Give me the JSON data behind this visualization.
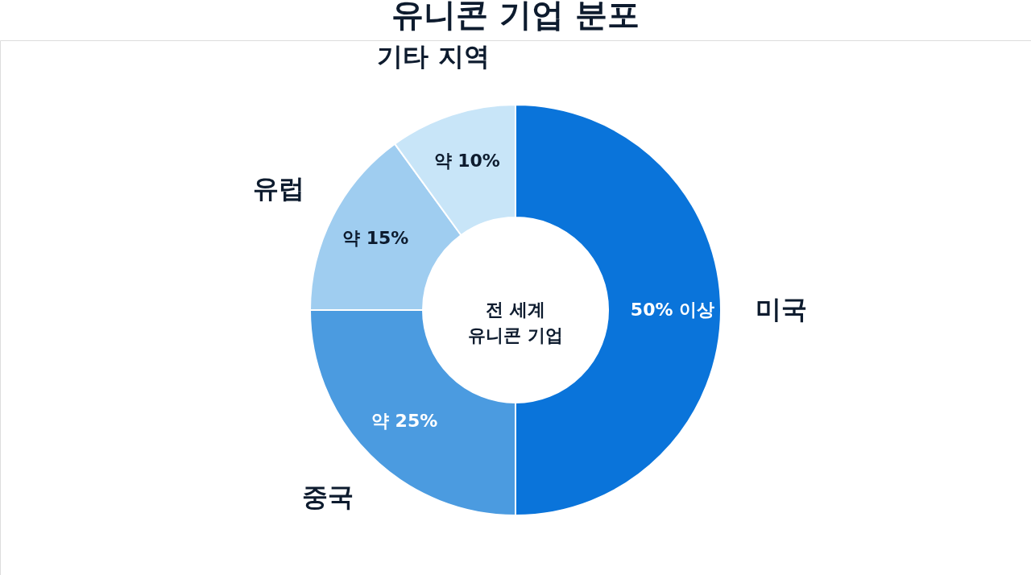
{
  "chart_data": {
    "type": "donut",
    "title": "유니콘 기업 분포",
    "categories": [
      "미국",
      "중국",
      "유럽",
      "기타 지역"
    ],
    "values": [
      50,
      25,
      15,
      10
    ],
    "colors": [
      "#0a74da",
      "#4b9be0",
      "#9fcdf0",
      "#c8e5f8"
    ],
    "value_labels": [
      "50% 이상",
      "약 25%",
      "약 15%",
      "약 10%"
    ],
    "annotations": [
      "전 세계\n유니콘 기업"
    ],
    "legend": false
  }
}
